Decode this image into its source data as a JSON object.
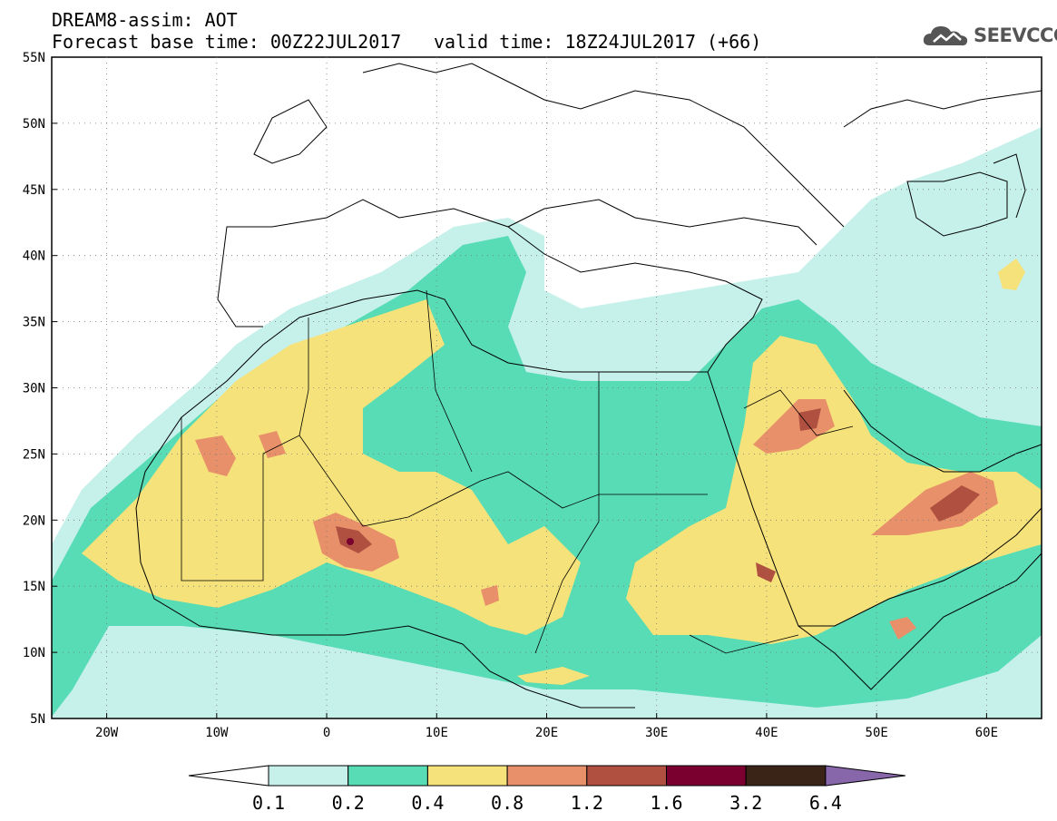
{
  "header": {
    "title_line1": "DREAM8-assim: AOT",
    "title_line2": "Forecast base time: 00Z22JUL2017",
    "valid_time": "valid time: 18Z24JUL2017 (+66)",
    "logo_text": "SEEVCCC"
  },
  "map": {
    "lon_range": [
      -25,
      65
    ],
    "lat_range": [
      5,
      55
    ],
    "lon_ticks": [
      "20W",
      "10W",
      "0",
      "10E",
      "20E",
      "30E",
      "40E",
      "50E",
      "60E"
    ],
    "lat_ticks": [
      "55N",
      "50N",
      "45N",
      "40N",
      "35N",
      "30N",
      "25N",
      "20N",
      "15N",
      "10N",
      "5N"
    ],
    "colors": {
      "ocean_bg": "#ffffff",
      "border": "#000000"
    }
  },
  "legend": {
    "levels": [
      "0.1",
      "0.2",
      "0.4",
      "0.8",
      "1.2",
      "1.6",
      "3.2",
      "6.4"
    ],
    "colors": [
      "#ffffff",
      "#c6f0ea",
      "#58dcb5",
      "#f5e27a",
      "#e8906a",
      "#b05040",
      "#7a0030",
      "#3a2418",
      "#8866aa"
    ]
  }
}
